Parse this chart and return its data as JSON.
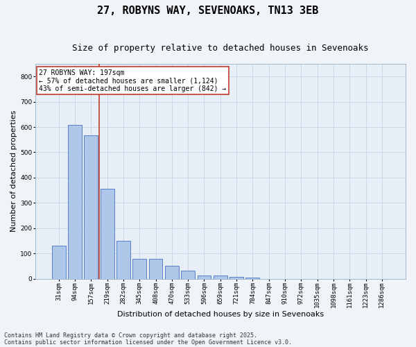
{
  "title_line1": "27, ROBYNS WAY, SEVENOAKS, TN13 3EB",
  "title_line2": "Size of property relative to detached houses in Sevenoaks",
  "xlabel": "Distribution of detached houses by size in Sevenoaks",
  "ylabel": "Number of detached properties",
  "categories": [
    "31sqm",
    "94sqm",
    "157sqm",
    "219sqm",
    "282sqm",
    "345sqm",
    "408sqm",
    "470sqm",
    "533sqm",
    "596sqm",
    "659sqm",
    "721sqm",
    "784sqm",
    "847sqm",
    "910sqm",
    "972sqm",
    "1035sqm",
    "1098sqm",
    "1161sqm",
    "1223sqm",
    "1286sqm"
  ],
  "values": [
    130,
    607,
    567,
    355,
    150,
    78,
    78,
    52,
    32,
    13,
    13,
    8,
    5,
    0,
    0,
    0,
    0,
    0,
    0,
    0,
    0
  ],
  "bar_color": "#aec6e8",
  "bar_edge_color": "#4472c4",
  "vline_color": "#c0392b",
  "vline_x": 2.5,
  "annotation_text": "27 ROBYNS WAY: 197sqm\n← 57% of detached houses are smaller (1,124)\n43% of semi-detached houses are larger (842) →",
  "annotation_box_color": "#c0392b",
  "ylim": [
    0,
    850
  ],
  "yticks": [
    0,
    100,
    200,
    300,
    400,
    500,
    600,
    700,
    800
  ],
  "grid_color": "#c8d8e8",
  "plot_bg_color": "#e8eef5",
  "fig_bg_color": "#f0f4f8",
  "footer_line1": "Contains HM Land Registry data © Crown copyright and database right 2025.",
  "footer_line2": "Contains public sector information licensed under the Open Government Licence v3.0.",
  "title_fontsize": 11,
  "subtitle_fontsize": 9,
  "axis_label_fontsize": 8,
  "tick_fontsize": 6.5,
  "annotation_fontsize": 7,
  "footer_fontsize": 6
}
